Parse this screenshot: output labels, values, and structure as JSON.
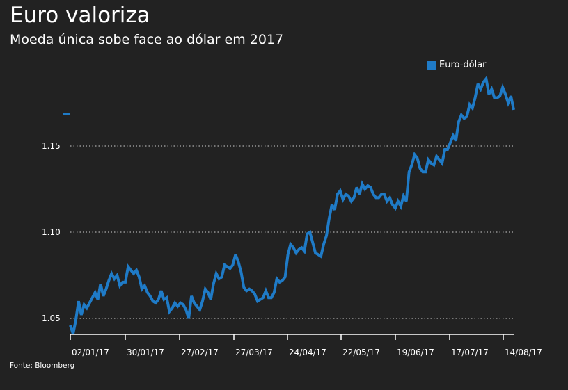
{
  "header": {
    "title": "Euro valoriza",
    "subtitle": "Moeda única sobe face ao dólar em 2017"
  },
  "footer": {
    "source": "Fonte: Bloomberg"
  },
  "chart_data": {
    "type": "line",
    "title": "Euro valoriza",
    "subtitle": "Moeda única sobe face ao dólar em 2017",
    "xlabel": "",
    "ylabel": "",
    "ylim": [
      1.04,
      1.19
    ],
    "x_ticks": [
      "02/01/17",
      "30/01/17",
      "27/02/17",
      "27/03/17",
      "24/04/17",
      "22/05/17",
      "19/06/17",
      "17/07/17",
      "14/08/17"
    ],
    "y_ticks": [
      1.05,
      1.1,
      1.15
    ],
    "y_tick_labels": [
      "1.05",
      "1.10",
      "1.15"
    ],
    "grid": "horizontal dotted",
    "legend_position": "top-right",
    "series_color": "#1f7bc7",
    "series": [
      {
        "name": "Euro-dólar",
        "values": [
          1.046,
          1.041,
          1.049,
          1.06,
          1.052,
          1.058,
          1.056,
          1.059,
          1.062,
          1.065,
          1.061,
          1.07,
          1.063,
          1.067,
          1.072,
          1.076,
          1.073,
          1.075,
          1.069,
          1.071,
          1.071,
          1.08,
          1.078,
          1.076,
          1.078,
          1.074,
          1.067,
          1.069,
          1.065,
          1.063,
          1.06,
          1.059,
          1.061,
          1.066,
          1.061,
          1.062,
          1.054,
          1.056,
          1.059,
          1.057,
          1.059,
          1.058,
          1.055,
          1.05,
          1.063,
          1.059,
          1.057,
          1.055,
          1.06,
          1.067,
          1.065,
          1.061,
          1.07,
          1.076,
          1.073,
          1.074,
          1.081,
          1.08,
          1.079,
          1.081,
          1.087,
          1.083,
          1.077,
          1.068,
          1.066,
          1.067,
          1.066,
          1.064,
          1.06,
          1.061,
          1.062,
          1.066,
          1.062,
          1.062,
          1.065,
          1.073,
          1.071,
          1.072,
          1.074,
          1.087,
          1.093,
          1.091,
          1.088,
          1.09,
          1.091,
          1.089,
          1.099,
          1.1,
          1.094,
          1.088,
          1.087,
          1.086,
          1.093,
          1.098,
          1.108,
          1.116,
          1.113,
          1.122,
          1.124,
          1.119,
          1.122,
          1.121,
          1.118,
          1.12,
          1.126,
          1.122,
          1.128,
          1.125,
          1.127,
          1.126,
          1.122,
          1.12,
          1.12,
          1.122,
          1.122,
          1.118,
          1.12,
          1.116,
          1.114,
          1.118,
          1.115,
          1.121,
          1.118,
          1.135,
          1.139,
          1.145,
          1.143,
          1.137,
          1.135,
          1.135,
          1.142,
          1.14,
          1.139,
          1.144,
          1.142,
          1.14,
          1.148,
          1.148,
          1.152,
          1.156,
          1.153,
          1.164,
          1.168,
          1.166,
          1.167,
          1.174,
          1.172,
          1.178,
          1.186,
          1.183,
          1.187,
          1.189,
          1.18,
          1.183,
          1.178,
          1.178,
          1.179,
          1.184,
          1.18,
          1.175,
          1.179,
          1.171
        ]
      }
    ]
  }
}
